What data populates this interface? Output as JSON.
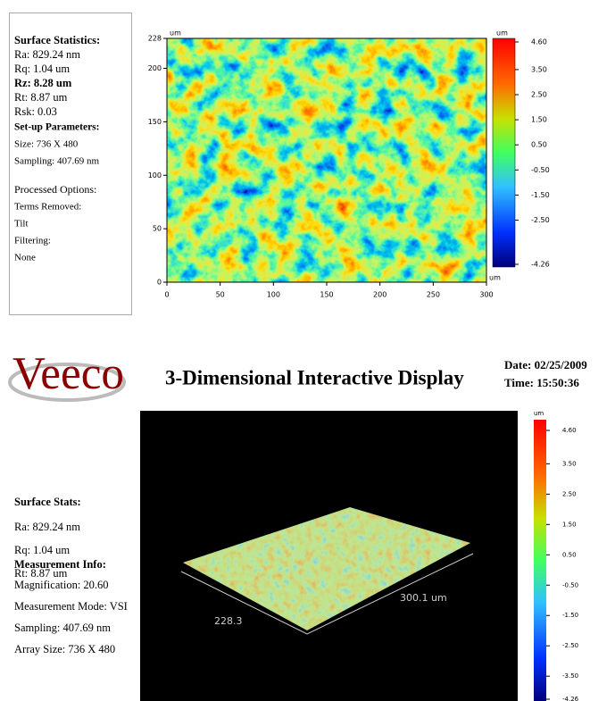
{
  "stats_panel": {
    "heading": "Surface Statistics:",
    "stats": [
      "Ra: 829.24 nm",
      "Rq: 1.04 um",
      "Rz: 8.28 um",
      "Rt: 8.87 um",
      "Rsk: 0.03"
    ],
    "setup_heading": "Set-up Parameters:",
    "setup": [
      "Size: 736 X 480",
      "Sampling: 407.69 nm"
    ],
    "processed_heading": "Processed Options:",
    "processed": [
      "Terms Removed:",
      "Tilt",
      "Filtering:",
      "None"
    ]
  },
  "map_2d": {
    "x_unit": "um",
    "y_unit": "um",
    "xticks": [
      0,
      50,
      100,
      150,
      200,
      250,
      300
    ],
    "yticks": [
      0,
      50,
      100,
      150,
      200,
      228
    ],
    "colorbar_unit_top": "um",
    "colorbar_unit_bottom": "um",
    "colorbar_ticks": [
      {
        "value": 4.6,
        "label": "4.60"
      },
      {
        "value": 3.5,
        "label": "3.50"
      },
      {
        "value": 2.5,
        "label": "2.50"
      },
      {
        "value": 1.5,
        "label": "1.50"
      },
      {
        "value": 0.5,
        "label": "0.50"
      },
      {
        "value": -0.5,
        "label": "-0.50"
      },
      {
        "value": -1.5,
        "label": "-1.50"
      },
      {
        "value": -2.5,
        "label": "-2.50"
      },
      {
        "value": -4.26,
        "label": "-4.26"
      }
    ]
  },
  "header": {
    "logo": "Veeco",
    "title": "3-Dimensional Interactive Display",
    "date": "Date: 02/25/2009",
    "time": "Time: 15:50:36"
  },
  "info_panel": {
    "stats_heading": "Surface Stats:",
    "stats": [
      "Ra: 829.24 nm",
      "Rq: 1.04 um",
      "Rt: 8.87 um"
    ],
    "measurement_heading": "Measurement Info:",
    "measurement": [
      "Magnification: 20.60",
      "Measurement Mode: VSI",
      "Sampling: 407.69 nm",
      "Array Size: 736 X 480"
    ]
  },
  "view_3d": {
    "y_axis_label": "228.3",
    "x_axis_label": "300.1 um",
    "colorbar_unit": "um",
    "colorbar_ticks": [
      {
        "value": 4.6,
        "label": "4.60"
      },
      {
        "value": 3.5,
        "label": "3.50"
      },
      {
        "value": 2.5,
        "label": "2.50"
      },
      {
        "value": 1.5,
        "label": "1.50"
      },
      {
        "value": 0.5,
        "label": "0.50"
      },
      {
        "value": -0.5,
        "label": "-0.50"
      },
      {
        "value": -1.5,
        "label": "-1.50"
      },
      {
        "value": -2.5,
        "label": "-2.50"
      },
      {
        "value": -3.5,
        "label": "-3.50"
      },
      {
        "value": -4.26,
        "label": "-4.26"
      }
    ]
  }
}
